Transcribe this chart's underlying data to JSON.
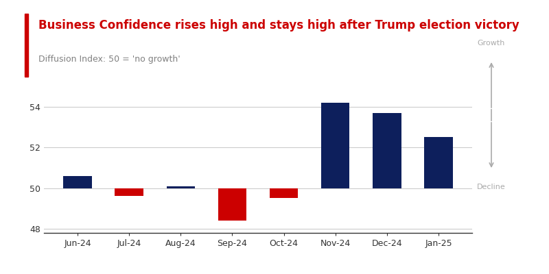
{
  "title": "Business Confidence rises high and stays high after Trump election victory",
  "subtitle": "Diffusion Index: 50 = 'no growth'",
  "categories": [
    "Jun-24",
    "Jul-24",
    "Aug-24",
    "Sep-24",
    "Oct-24",
    "Nov-24",
    "Dec-24",
    "Jan-25"
  ],
  "values": [
    50.6,
    49.6,
    50.1,
    48.4,
    49.5,
    54.2,
    53.7,
    52.5
  ],
  "baseline": 50,
  "bar_colors_above": "#0d1f5c",
  "bar_colors_below": "#cc0000",
  "ylim": [
    47.8,
    55.2
  ],
  "yticks": [
    48,
    50,
    52,
    54
  ],
  "title_color": "#cc0000",
  "subtitle_color": "#808080",
  "accent_line_color": "#cc0000",
  "grid_color": "#cccccc",
  "axis_color": "#333333",
  "growth_decline_color": "#aaaaaa",
  "background_color": "#ffffff"
}
